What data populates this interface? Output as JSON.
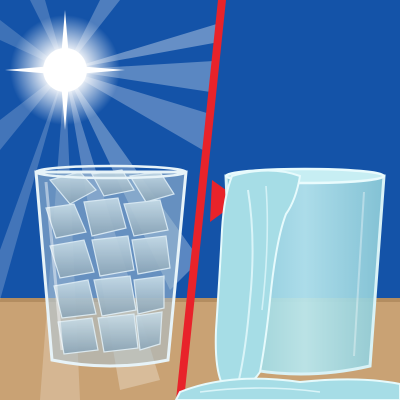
{
  "scene": {
    "left_panel": "ice-glass-in-sunlight",
    "right_panel": "melted-ice-overflowing-glass",
    "transition": "red-arrow-divider",
    "colors": {
      "sky": "#1453a8",
      "table": "#c9a274",
      "divider": "#e8232a",
      "water": "#a6dde6",
      "ice": "#9cb7c8"
    },
    "icons": [
      "sun-icon",
      "arrow-right-icon"
    ]
  }
}
